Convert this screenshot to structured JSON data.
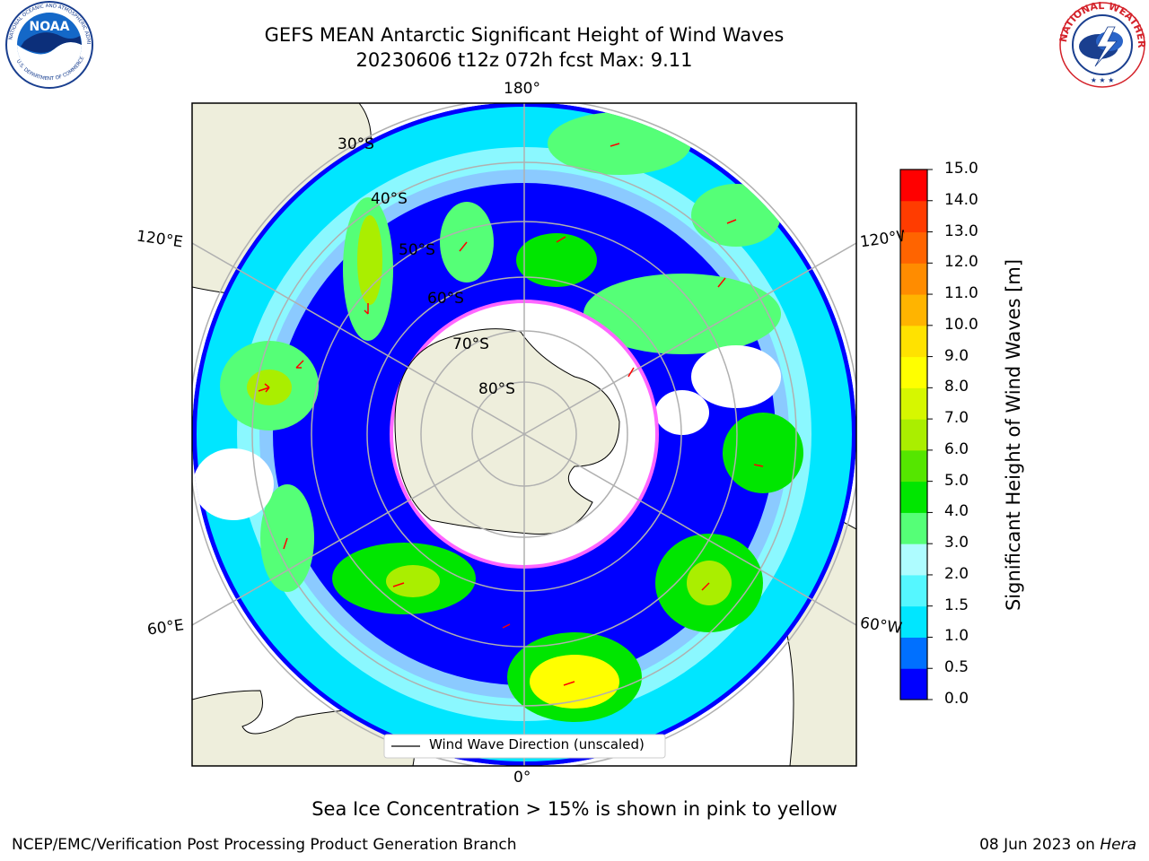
{
  "title": {
    "line1": "GEFS MEAN Antarctic Significant Height of Wind Waves",
    "line2": "20230606 t12z 072h fcst   Max: 9.11"
  },
  "logos": {
    "left": "noaa-logo",
    "left_text": "NOAA",
    "left_ring_text": "NATIONAL OCEANIC AND ATMOSPHERIC ADMINISTRATION",
    "left_ring_text_bottom": "U.S. DEPARTMENT OF COMMERCE",
    "right": "national-weather-service-logo",
    "right_ring_text": "NATIONAL WEATHER SERVICE"
  },
  "map": {
    "projection": "south-polar-stereographic",
    "longitude_labels": {
      "top": "180°",
      "bottom": "0°",
      "upper_left": "120°E",
      "upper_right": "120°W",
      "lower_left": "60°E",
      "lower_right": "60°W"
    },
    "latitude_labels": [
      "30°S",
      "40°S",
      "50°S",
      "60°S",
      "70°S",
      "80°S"
    ],
    "legend": "Wind Wave Direction (unscaled)",
    "arrow_color": "#ff0000",
    "land_color": "#eeeedc",
    "sea_ice_colors": [
      "#ff00ff",
      "#ffff00"
    ]
  },
  "colorbar": {
    "label": "Significant Height of Wind Waves [m]",
    "ticks": [
      "0.0",
      "0.5",
      "1.0",
      "1.5",
      "2.0",
      "3.0",
      "4.0",
      "5.0",
      "6.0",
      "7.0",
      "8.0",
      "9.0",
      "10.0",
      "11.0",
      "12.0",
      "13.0",
      "14.0",
      "15.0"
    ],
    "colors": [
      "#0000ff",
      "#0070ff",
      "#00e6ff",
      "#55f7ff",
      "#aefcff",
      "#55ff77",
      "#00e600",
      "#55e600",
      "#aaee00",
      "#d6f700",
      "#ffff00",
      "#ffe200",
      "#ffb400",
      "#ff8c00",
      "#ff6400",
      "#ff3c00",
      "#ff0000"
    ]
  },
  "sea_ice_note": "Sea Ice Concentration > 15% is shown in pink to yellow",
  "footer": {
    "left": "NCEP/EMC/Verification Post Processing Product Generation Branch",
    "right_date": "08 Jun 2023 on ",
    "right_host": "Hera"
  }
}
